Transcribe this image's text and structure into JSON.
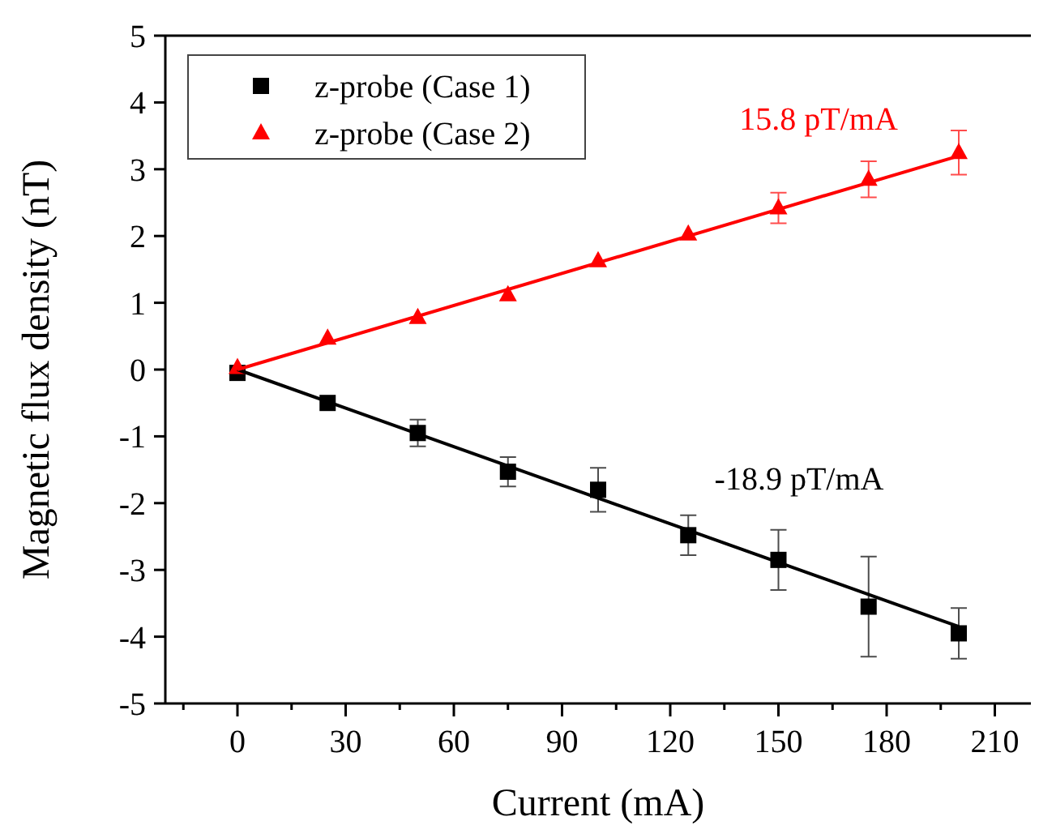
{
  "chart_data": {
    "type": "scatter",
    "xlabel": "Current (mA)",
    "ylabel": "Magnetic flux density (nT)",
    "xlim": [
      -20,
      220
    ],
    "xticks": [
      0,
      30,
      60,
      90,
      120,
      150,
      180,
      210
    ],
    "ylim": [
      -5,
      5
    ],
    "yticks": [
      -5,
      -4,
      -3,
      -2,
      -1,
      0,
      1,
      2,
      3,
      4,
      5
    ],
    "legend": "top left",
    "grid": false,
    "series": [
      {
        "name": "z-probe (Case 1)",
        "color": "#000000",
        "marker": "square",
        "x": [
          0,
          25,
          50,
          75,
          100,
          125,
          150,
          175,
          200
        ],
        "values": [
          -0.05,
          -0.5,
          -0.95,
          -1.53,
          -1.8,
          -2.48,
          -2.85,
          -3.55,
          -3.95
        ],
        "errors": [
          null,
          null,
          0.2,
          0.22,
          0.33,
          0.3,
          0.45,
          0.75,
          0.38
        ]
      },
      {
        "name": "z-probe (Case 2)",
        "color": "#ff0000",
        "marker": "triangle",
        "x": [
          0,
          25,
          50,
          75,
          100,
          125,
          150,
          175,
          200
        ],
        "values": [
          0.03,
          0.47,
          0.78,
          1.12,
          1.63,
          2.03,
          2.42,
          2.85,
          3.25
        ],
        "errors": [
          null,
          null,
          null,
          null,
          null,
          null,
          0.23,
          0.27,
          0.33
        ]
      },
      {
        "type": "line",
        "color": "#000000",
        "x": [
          0,
          200
        ],
        "values": [
          0,
          -3.85
        ]
      },
      {
        "type": "line",
        "color": "#ff0000",
        "x": [
          0,
          200
        ],
        "values": [
          0,
          3.2
        ]
      }
    ],
    "annotations": [
      "15.8 pT/mA",
      "-18.9 pT/mA"
    ]
  }
}
